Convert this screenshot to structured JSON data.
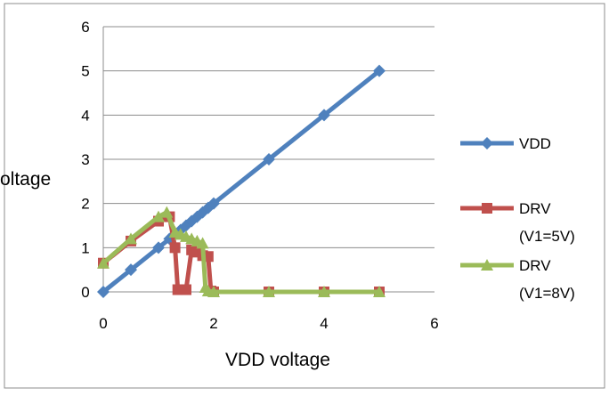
{
  "chart_data": {
    "type": "line",
    "title": "",
    "xlabel": "VDD voltage",
    "ylabel": "oltage",
    "xlim": [
      0,
      6
    ],
    "ylim": [
      0,
      6
    ],
    "xticks": [
      "0",
      "2",
      "4",
      "6"
    ],
    "yticks": [
      "0",
      "1",
      "2",
      "3",
      "4",
      "5",
      "6"
    ],
    "grid": "horizontal",
    "legend_position": "right",
    "series": [
      {
        "name": "VDD",
        "label_lines": [
          "VDD"
        ],
        "color": "#4F81BD",
        "marker": "diamond",
        "points": [
          [
            0,
            0
          ],
          [
            0.5,
            0.5
          ],
          [
            1,
            1
          ],
          [
            1.2,
            1.2
          ],
          [
            1.4,
            1.4
          ],
          [
            1.5,
            1.5
          ],
          [
            1.6,
            1.6
          ],
          [
            1.7,
            1.7
          ],
          [
            1.8,
            1.8
          ],
          [
            1.9,
            1.9
          ],
          [
            2,
            2
          ],
          [
            3,
            3
          ],
          [
            4,
            4
          ],
          [
            5,
            5
          ]
        ]
      },
      {
        "name": "DRV (V1=5V)",
        "label_lines": [
          "DRV",
          "(V1=5V)"
        ],
        "color": "#C0504D",
        "marker": "square",
        "points": [
          [
            0,
            0.65
          ],
          [
            0.5,
            1.15
          ],
          [
            1,
            1.6
          ],
          [
            1.2,
            1.7
          ],
          [
            1.3,
            1.0
          ],
          [
            1.35,
            0.05
          ],
          [
            1.5,
            0.05
          ],
          [
            1.6,
            0.95
          ],
          [
            1.7,
            0.9
          ],
          [
            1.8,
            0.82
          ],
          [
            1.9,
            0.8
          ],
          [
            1.95,
            0.02
          ],
          [
            2,
            0
          ],
          [
            3,
            0
          ],
          [
            4,
            0
          ],
          [
            5,
            0
          ]
        ]
      },
      {
        "name": "DRV (V1=8V)",
        "label_lines": [
          "DRV",
          "(V1=8V)"
        ],
        "color": "#9BBB59",
        "marker": "triangle",
        "points": [
          [
            0,
            0.65
          ],
          [
            0.5,
            1.2
          ],
          [
            1,
            1.7
          ],
          [
            1.15,
            1.8
          ],
          [
            1.3,
            1.35
          ],
          [
            1.4,
            1.3
          ],
          [
            1.5,
            1.25
          ],
          [
            1.6,
            1.2
          ],
          [
            1.7,
            1.15
          ],
          [
            1.8,
            1.1
          ],
          [
            1.85,
            0.1
          ],
          [
            1.9,
            0.02
          ],
          [
            2,
            0
          ],
          [
            3,
            0
          ],
          [
            4,
            0
          ],
          [
            5,
            0
          ]
        ]
      }
    ]
  }
}
